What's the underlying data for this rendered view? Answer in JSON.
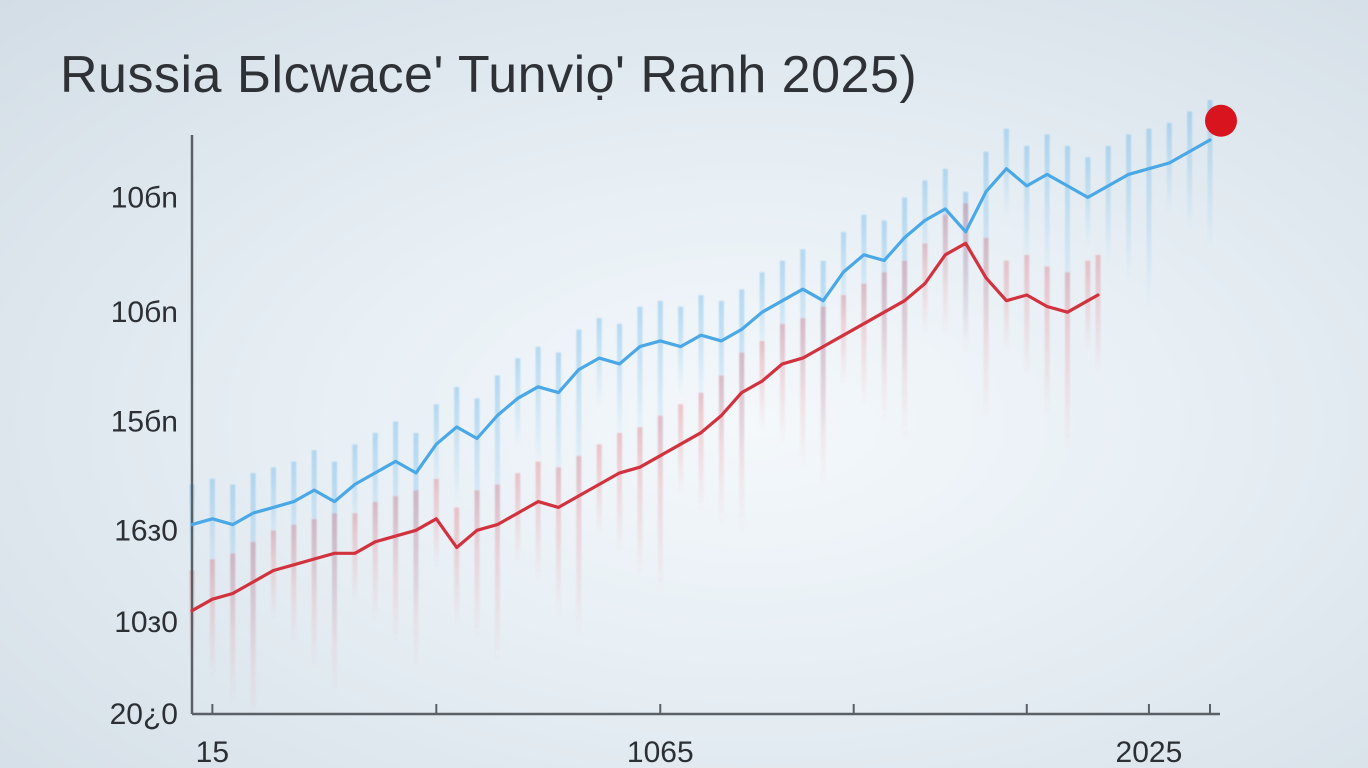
{
  "chart_data": {
    "type": "line",
    "title": "Russia Бlcwace' Tunviọ' Ranh 2025)",
    "xlabel": "",
    "ylabel": "",
    "xlim": [
      0,
      100
    ],
    "ylim": [
      0,
      100
    ],
    "grid": false,
    "legend": "none",
    "y_ticks": [
      {
        "label": "10бn",
        "value": 90
      },
      {
        "label": "10бn",
        "value": 70
      },
      {
        "label": "15бn",
        "value": 51
      },
      {
        "label": "16з0",
        "value": 32
      },
      {
        "label": "10з0",
        "value": 16
      },
      {
        "label": "20¿0",
        "value": 0
      }
    ],
    "x_ticks": [
      {
        "label": "15",
        "value": 2
      },
      {
        "label": "",
        "value": 24
      },
      {
        "label": "1065",
        "value": 46
      },
      {
        "label": "",
        "value": 65
      },
      {
        "label": "",
        "value": 82
      },
      {
        "label": "2025",
        "value": 94
      },
      {
        "label": "",
        "value": 100
      }
    ],
    "series": [
      {
        "color": "#4aa8e6",
        "x": [
          0,
          2,
          4,
          6,
          8,
          10,
          12,
          14,
          16,
          18,
          20,
          22,
          24,
          26,
          28,
          30,
          32,
          34,
          36,
          38,
          40,
          42,
          44,
          46,
          48,
          50,
          52,
          54,
          56,
          58,
          60,
          62,
          64,
          66,
          68,
          70,
          72,
          74,
          76,
          78,
          80,
          82,
          84,
          86,
          88,
          90,
          92,
          94,
          96,
          98,
          100
        ],
        "values": [
          33,
          34,
          33,
          35,
          36,
          37,
          39,
          37,
          40,
          42,
          44,
          42,
          47,
          50,
          48,
          52,
          55,
          57,
          56,
          60,
          62,
          61,
          64,
          65,
          64,
          66,
          65,
          67,
          70,
          72,
          74,
          72,
          77,
          80,
          79,
          83,
          86,
          88,
          84,
          91,
          95,
          92,
          94,
          92,
          90,
          92,
          94,
          95,
          96,
          98,
          100
        ]
      },
      {
        "color": "#d2323e",
        "x": [
          0,
          2,
          4,
          6,
          8,
          10,
          12,
          14,
          16,
          18,
          20,
          22,
          24,
          26,
          28,
          30,
          32,
          34,
          36,
          38,
          40,
          42,
          44,
          46,
          48,
          50,
          52,
          54,
          56,
          58,
          60,
          62,
          64,
          66,
          68,
          70,
          72,
          74,
          76,
          78,
          80,
          82,
          84,
          86,
          88,
          89
        ],
        "values": [
          18,
          20,
          21,
          23,
          25,
          26,
          27,
          28,
          28,
          30,
          31,
          32,
          34,
          29,
          32,
          33,
          35,
          37,
          36,
          38,
          40,
          42,
          43,
          45,
          47,
          49,
          52,
          56,
          58,
          61,
          62,
          64,
          66,
          68,
          70,
          72,
          75,
          80,
          82,
          76,
          72,
          73,
          71,
          70,
          72,
          73
        ]
      }
    ],
    "annotations": [
      {
        "type": "marker",
        "color": "#d8141e",
        "x": 100,
        "y": 103
      }
    ]
  }
}
